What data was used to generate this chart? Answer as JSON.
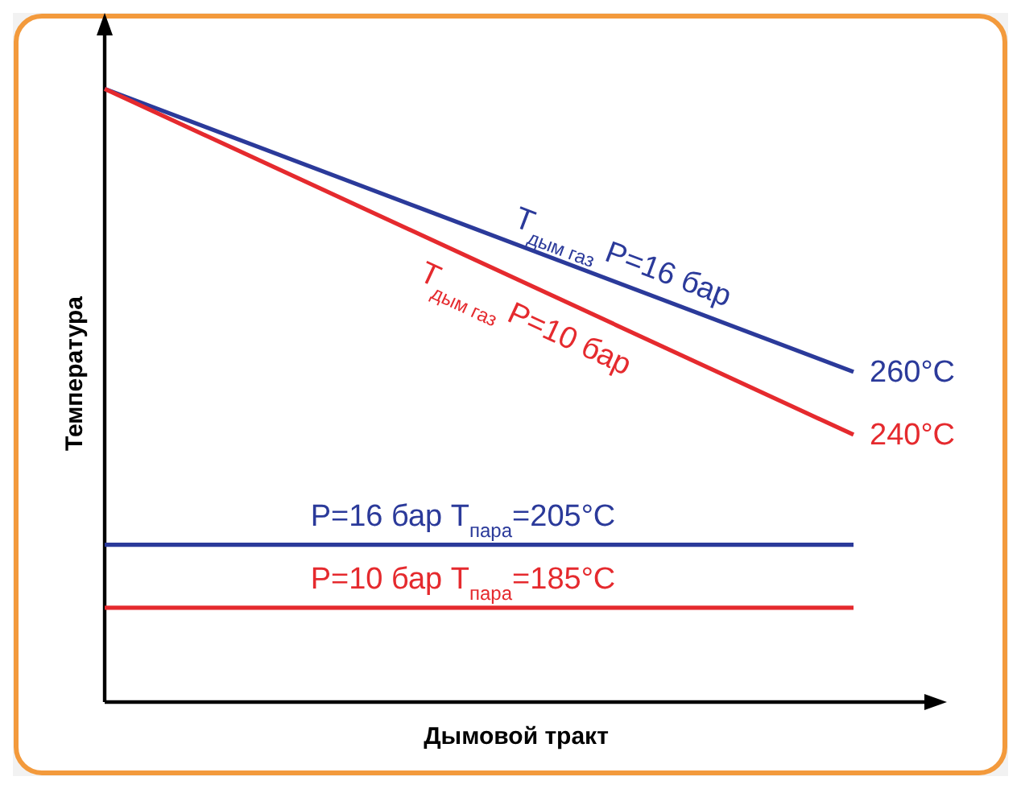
{
  "chart_data": {
    "type": "line",
    "xlabel": "Дымовой тракт",
    "ylabel": "Температура",
    "categories": [
      null,
      null
    ],
    "ylim": [
      155,
      368
    ],
    "tick_labels": false,
    "marker": "none",
    "line_style": "solid",
    "series": [
      {
        "name": "T$_{дым газ}$  P=16 бар",
        "color": "#2b3a9a",
        "values": [
          350,
          260
        ],
        "value_labels": [
          null,
          "260°C"
        ]
      },
      {
        "name": "T$_{дым газ}$  P=10 бар",
        "color": "#e52a2e",
        "values": [
          350,
          240
        ],
        "value_labels": [
          null,
          "240°C"
        ]
      },
      {
        "name": "P=16 бар  T$_{пара}$=205°C",
        "color": "#2b3a9a",
        "values": [
          205,
          205
        ]
      },
      {
        "name": "P=10 бар  T$_{пара}$=185°C",
        "color": "#e52a2e",
        "values": [
          185,
          185
        ]
      }
    ]
  }
}
